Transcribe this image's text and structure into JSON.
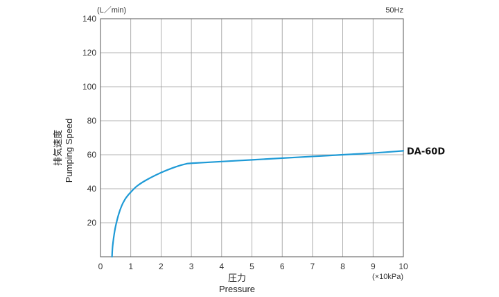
{
  "chart_data": {
    "type": "line",
    "frequency": "50Hz",
    "y_unit": "(L／min)",
    "x_unit": "(×10kPa)",
    "ylabel_jp": "排気速度",
    "ylabel_en": "Pumping Speed",
    "xlabel_jp": "圧力",
    "xlabel_en": "Pressure",
    "xlim": [
      0,
      10
    ],
    "ylim": [
      0,
      140
    ],
    "x_ticks": [
      "0",
      "1",
      "2",
      "3",
      "4",
      "5",
      "6",
      "7",
      "8",
      "9",
      "10"
    ],
    "y_ticks": [
      "20",
      "40",
      "60",
      "80",
      "100",
      "120",
      "140"
    ],
    "grid": true,
    "series": [
      {
        "name": "DA-60D",
        "color": "#1e9ad6",
        "x": [
          0.38,
          0.4,
          0.45,
          0.5,
          0.6,
          0.7,
          0.8,
          0.9,
          1.0,
          1.2,
          1.5,
          2.0,
          2.5,
          2.8,
          3.0,
          4.0,
          5.0,
          6.0,
          7.0,
          8.0,
          9.0,
          10.0
        ],
        "y": [
          0,
          6,
          13,
          18,
          25,
          30,
          33.5,
          36,
          38,
          41.5,
          45,
          49.5,
          53,
          54.5,
          55,
          56,
          57,
          58,
          59,
          60,
          61,
          62.3
        ]
      }
    ]
  }
}
